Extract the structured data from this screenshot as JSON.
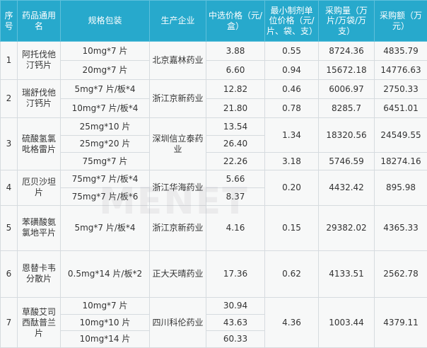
{
  "watermark": "MENET",
  "headers": {
    "no": "序号",
    "name": "药品通用名",
    "spec": "规格包装",
    "maker": "生产企业",
    "price": "中选价格（元/盒）",
    "unit_price": "最小制剂单位价格（元/片、袋、支）",
    "qty": "采购量（万片/万袋/万支）",
    "amount": "采购额（万元）"
  },
  "rows": [
    {
      "no": "1",
      "name": "阿托伐他汀钙片",
      "maker": "北京嘉林药业",
      "items": [
        {
          "spec": "10mg*7 片",
          "price": "3.88",
          "unit_price": "0.55",
          "qty": "8724.36",
          "amount": "4835.79"
        },
        {
          "spec": "20mg*7 片",
          "price": "6.60",
          "unit_price": "0.94",
          "qty": "15672.18",
          "amount": "14776.63"
        }
      ]
    },
    {
      "no": "2",
      "name": "瑞舒伐他汀钙片",
      "maker": "浙江京新药业",
      "items": [
        {
          "spec": "5mg*7 片/板*4",
          "price": "12.82",
          "unit_price": "0.46",
          "qty": "6006.97",
          "amount": "2750.33"
        },
        {
          "spec": "10mg*7 片/板*4",
          "price": "21.80",
          "unit_price": "0.78",
          "qty": "8285.7",
          "amount": "6451.01"
        }
      ]
    },
    {
      "no": "3",
      "name": "硫酸氢氯吡格雷片",
      "maker": "深圳信立泰药业",
      "items": [
        {
          "spec": "25mg*10 片",
          "price": "13.54"
        },
        {
          "spec": "25mg*20 片",
          "price": "26.40"
        },
        {
          "spec": "75mg*7 片",
          "price": "22.26",
          "unit_price": "3.18",
          "qty": "5746.59",
          "amount": "18274.16"
        }
      ],
      "shared": {
        "unit_price": "1.34",
        "qty": "18320.56",
        "amount": "24549.55"
      }
    },
    {
      "no": "4",
      "name": "厄贝沙坦片",
      "maker": "浙江华海药业",
      "items": [
        {
          "spec": "75mg*7 片/板*4",
          "price": "5.66"
        },
        {
          "spec": "75mg*7 片/板*6",
          "price": "8.37"
        }
      ],
      "shared": {
        "unit_price": "0.20",
        "qty": "4432.42",
        "amount": "895.98"
      }
    },
    {
      "no": "5",
      "name": "苯磺酸氨氯地平片",
      "maker": "浙江京新药业",
      "items": [
        {
          "spec": "5mg*7 片/板*4",
          "price": "4.16",
          "unit_price": "0.15",
          "qty": "29382.02",
          "amount": "4365.33"
        }
      ]
    },
    {
      "no": "6",
      "name": "恩替卡韦分散片",
      "maker": "正大天晴药业",
      "items": [
        {
          "spec": "0.5mg*14 片/板*2",
          "price": "17.36",
          "unit_price": "0.62",
          "qty": "4133.51",
          "amount": "2562.78"
        }
      ]
    },
    {
      "no": "7",
      "name": "草酸艾司西酞普兰片",
      "maker": "四川科伦药业",
      "items": [
        {
          "spec": "10mg*7 片",
          "price": "30.94"
        },
        {
          "spec": "10mg*10 片",
          "price": "43.63"
        },
        {
          "spec": "10mg*14 片",
          "price": "60.33"
        }
      ],
      "shared": {
        "unit_price": "4.36",
        "qty": "1003.44",
        "amount": "4379.11"
      }
    }
  ]
}
